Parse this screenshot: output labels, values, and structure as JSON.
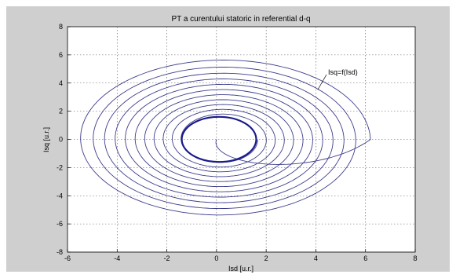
{
  "chart_data": {
    "type": "line",
    "title": "PT a curentului statoric in referential d-q",
    "xlabel": "Isd [u.r.]",
    "ylabel": "Isq [u.r.]",
    "xlim": [
      -6,
      8
    ],
    "ylim": [
      -8,
      8
    ],
    "xticks": [
      "-6",
      "-4",
      "-2",
      "0",
      "2",
      "4",
      "6",
      "8"
    ],
    "yticks": [
      "8",
      "6",
      "4",
      "2",
      "0",
      "-2",
      "-4",
      "-6",
      "-8"
    ],
    "grid": true,
    "annotation": "Isq=f(Isd)",
    "colors": {
      "curve": "#3c3c8c",
      "limit_cycle": "#1a1a8a",
      "background": "#cfcfcf",
      "axes_bg": "#ffffff"
    },
    "series": [
      {
        "spiral": {
          "start": [
            0,
            0
          ],
          "center": [
            0.2,
            0
          ],
          "initial_radius_x": 6.0,
          "initial_radius_y": 5.8,
          "final_radius_x": 1.45,
          "final_radius_y": 1.55,
          "turns": 11
        },
        "limit_cycle": {
          "center": [
            0.1,
            0
          ],
          "radius_x": 1.5,
          "radius_y": 1.6
        }
      }
    ]
  }
}
